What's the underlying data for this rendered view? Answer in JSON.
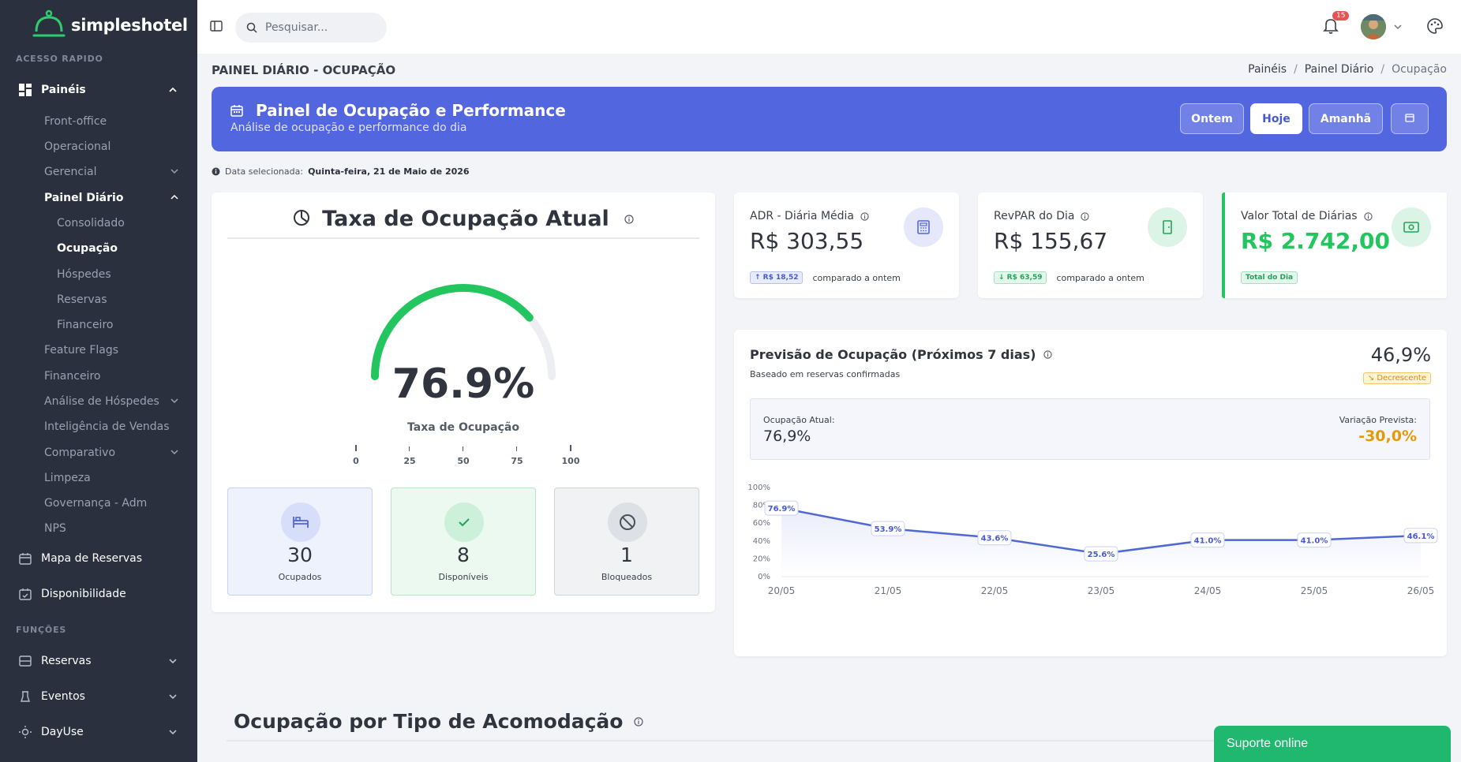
{
  "app": {
    "name": "simpleshotel"
  },
  "sidebar": {
    "quick_access_label": "ACESSO RAPIDO",
    "paineis": "Painéis",
    "sub": {
      "front_office": "Front-office",
      "operacional": "Operacional",
      "gerencial": "Gerencial",
      "painel_diario": "Painel Diário",
      "consolidado": "Consolidado",
      "ocupacao": "Ocupação",
      "hospedes": "Hóspedes",
      "reservas": "Reservas",
      "financeiro_sub": "Financeiro",
      "feature_flags": "Feature Flags",
      "financeiro": "Financeiro",
      "analise_hospedes": "Análise de Hóspedes",
      "inteligencia_vendas": "Inteligência de Vendas",
      "comparativo": "Comparativo",
      "limpeza": "Limpeza",
      "governanca": "Governança - Adm",
      "nps": "NPS"
    },
    "mapa_reservas": "Mapa de Reservas",
    "disponibilidade": "Disponibilidade",
    "functions_label": "FUNÇÕES",
    "reservas": "Reservas",
    "eventos": "Eventos",
    "dayuse": "DayUse"
  },
  "topbar": {
    "search_placeholder": "Pesquisar...",
    "notifications_count": "15"
  },
  "page": {
    "title": "PAINEL DIÁRIO - OCUPAÇÃO",
    "breadcrumb": [
      "Painéis",
      "Painel Diário",
      "Ocupação"
    ]
  },
  "banner": {
    "title": "Painel de Ocupação e Performance",
    "subtitle": "Análise de ocupação e performance do dia",
    "btn_ontem": "Ontem",
    "btn_hoje": "Hoje",
    "btn_amanha": "Amanhã"
  },
  "date_note": {
    "label": "Data selecionada:",
    "value": "Quinta-feira, 21 de Maio de 2026"
  },
  "occupancy": {
    "title": "Taxa de Ocupação Atual",
    "value_text": "76.9%",
    "value": 76.9,
    "label": "Taxa de Ocupação",
    "ticks": [
      "0",
      "25",
      "50",
      "75",
      "100"
    ],
    "ocupados": {
      "value": "30",
      "label": "Ocupados"
    },
    "disponiveis": {
      "value": "8",
      "label": "Disponíveis"
    },
    "bloqueados": {
      "value": "1",
      "label": "Bloqueados"
    }
  },
  "kpis": {
    "adr": {
      "label": "ADR - Diária Média",
      "value": "R$ 303,55",
      "delta": "↑ R$ 18,52",
      "compare": "comparado a ontem"
    },
    "revpar": {
      "label": "RevPAR do Dia",
      "value": "R$ 155,67",
      "delta": "↓ R$ 63,59",
      "compare": "comparado a ontem"
    },
    "total": {
      "label": "Valor Total de Diárias",
      "value": "R$ 2.742,00",
      "badge": "Total do Dia"
    }
  },
  "forecast": {
    "title": "Previsão de Ocupação (Próximos 7 dias)",
    "subtitle": "Baseado em reservas confirmadas",
    "big_value": "46,9%",
    "trend": "↘ Decrescente",
    "current_label": "Ocupação Atual:",
    "current_value": "76,9%",
    "variation_label": "Variação Prevista:",
    "variation_value": "-30,0%"
  },
  "chart_data": {
    "type": "line",
    "categories": [
      "20/05",
      "21/05",
      "22/05",
      "23/05",
      "24/05",
      "25/05",
      "26/05"
    ],
    "values": [
      76.9,
      53.9,
      43.6,
      25.6,
      41.0,
      41.0,
      46.1
    ],
    "data_labels": [
      "76.9%",
      "53.9%",
      "43.6%",
      "25.6%",
      "41.0%",
      "41.0%",
      "46.1%"
    ],
    "y_ticks": [
      "0%",
      "20%",
      "40%",
      "60%",
      "80%",
      "100%"
    ],
    "ylim": [
      0,
      100
    ],
    "color": "#5068d6"
  },
  "section": {
    "title": "Ocupação por Tipo de Acomodação"
  },
  "support": {
    "label": "Suporte online"
  }
}
